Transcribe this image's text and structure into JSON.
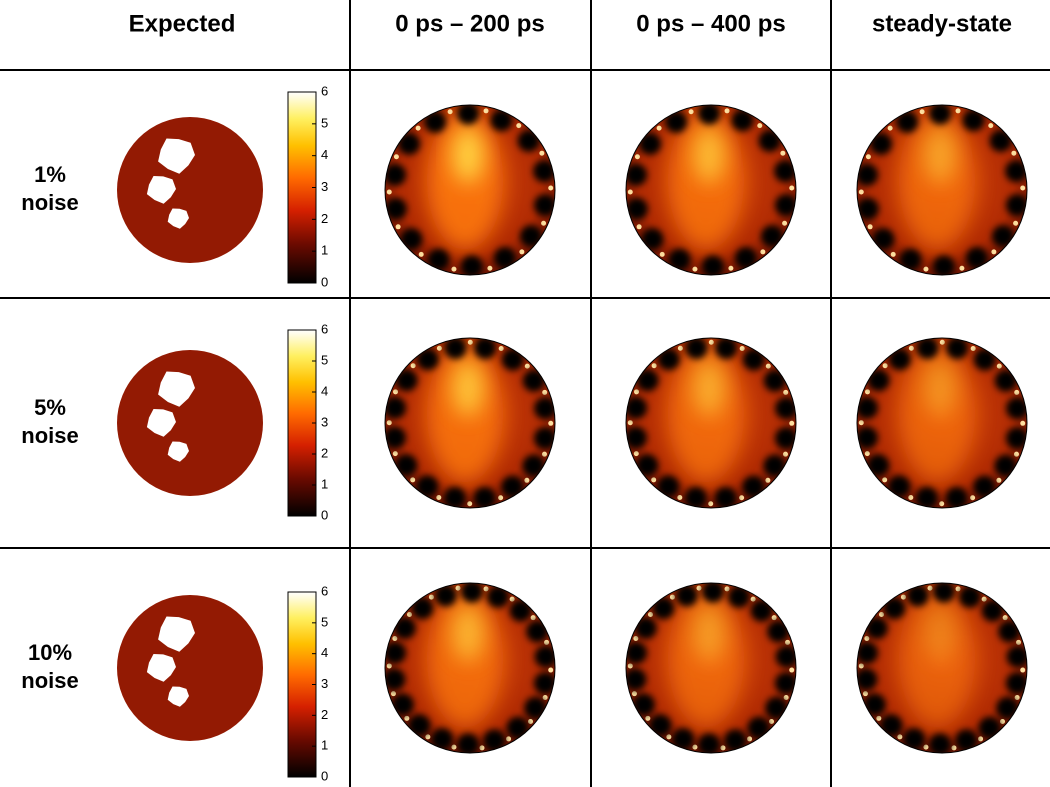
{
  "header": {
    "columns": [
      "Expected",
      "0 ps – 200 ps",
      "0 ps – 400 ps",
      "steady-state"
    ]
  },
  "rows": [
    {
      "label": [
        "1%",
        "noise"
      ],
      "colorbar_ticks": [
        "0",
        "1",
        "2",
        "3",
        "4",
        "5",
        "6"
      ]
    },
    {
      "label": [
        "5%",
        "noise"
      ],
      "colorbar_ticks": [
        "0",
        "1",
        "2",
        "3",
        "4",
        "5",
        "6"
      ]
    },
    {
      "label": [
        "10%",
        "noise"
      ],
      "colorbar_ticks": [
        "0",
        "1",
        "2",
        "3",
        "4",
        "5",
        "6"
      ]
    }
  ]
}
